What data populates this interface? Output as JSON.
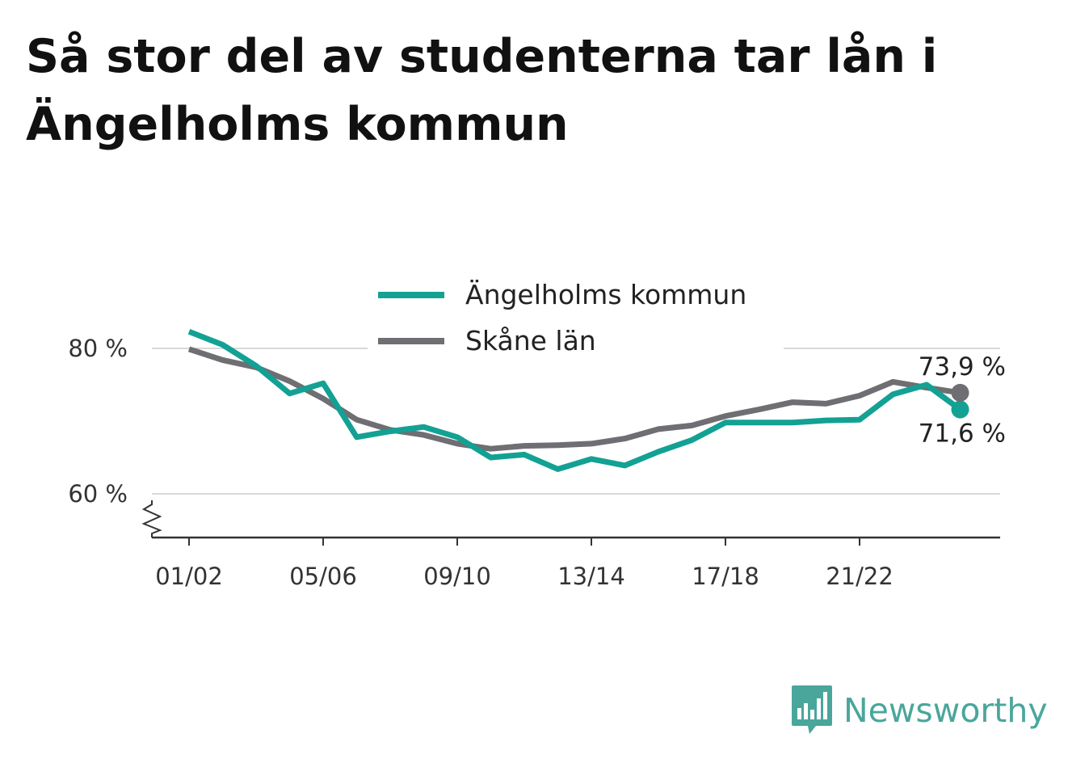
{
  "header": {
    "title": "Så stor del av studenterna tar lån i Ängelholms kommun"
  },
  "chart_data": {
    "type": "line",
    "title": "Så stor del av studenterna tar lån i Ängelholms kommun",
    "xlabel": "",
    "ylabel": "",
    "x": [
      "01/02",
      "02/03",
      "03/04",
      "04/05",
      "05/06",
      "06/07",
      "07/08",
      "08/09",
      "09/10",
      "10/11",
      "11/12",
      "12/13",
      "13/14",
      "14/15",
      "15/16",
      "16/17",
      "17/18",
      "18/19",
      "19/20",
      "20/21",
      "21/22",
      "22/23",
      "23/24",
      "24/25"
    ],
    "x_ticks": [
      "01/02",
      "05/06",
      "09/10",
      "13/14",
      "17/18",
      "21/22"
    ],
    "y_ticks": [
      {
        "value": 60,
        "label": "60 %"
      },
      {
        "value": 80,
        "label": "80 %"
      }
    ],
    "ylim": [
      54,
      90
    ],
    "y_axis_break": true,
    "grid": true,
    "legend_position": "top-center",
    "series": [
      {
        "name": "Ängelholms kommun",
        "color": "#13a194",
        "values": [
          82.3,
          80.5,
          77.6,
          73.8,
          75.2,
          67.8,
          68.6,
          69.2,
          67.8,
          65.0,
          65.4,
          63.4,
          64.8,
          63.9,
          65.8,
          67.4,
          69.8,
          69.8,
          69.8,
          70.1,
          70.2,
          73.7,
          75.0,
          71.6
        ],
        "end_label": "71,6 %"
      },
      {
        "name": "Skåne län",
        "color": "#6e6e73",
        "values": [
          79.9,
          78.4,
          77.4,
          75.5,
          73.1,
          70.2,
          68.8,
          68.1,
          66.9,
          66.2,
          66.6,
          66.7,
          66.9,
          67.6,
          68.9,
          69.4,
          70.7,
          71.6,
          72.6,
          72.4,
          73.5,
          75.4,
          74.6,
          73.9
        ],
        "end_label": "73,9 %"
      }
    ]
  },
  "footer": {
    "brand_name": "Newsworthy",
    "brand_color": "#4aa69b",
    "brand_icon": "bar-chart-icon"
  }
}
